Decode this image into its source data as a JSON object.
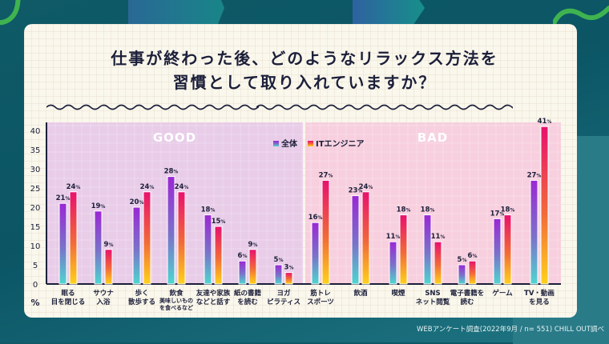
{
  "title": {
    "line1": "仕事が終わった後、どのようなリラックス方法を",
    "line2": "習慣として取り入れていますか？"
  },
  "footnote": "WEBアンケート調査(2022年9月 / n= 551) CHILL OUT調べ",
  "colors": {
    "background": "#0b5565",
    "card": "#faf7ec",
    "good_region": "#e8cce8",
    "bad_region": "#f7cfde",
    "series_all_top": "#9b27d4",
    "series_all_bottom": "#4fd6d0",
    "series_it_top": "#e8106e",
    "series_it_bottom": "#ffd21a",
    "accent_green": "#3fb34f"
  },
  "chart_data": {
    "type": "bar",
    "title": "仕事が終わった後、どのようなリラックス方法を習慣として取り入れていますか？",
    "xlabel": "",
    "ylabel": "%",
    "ylim": [
      0,
      40
    ],
    "yticks": [
      0,
      5,
      10,
      15,
      20,
      25,
      30,
      35,
      40
    ],
    "grid": true,
    "legend": "top-center",
    "regions": [
      {
        "label": "GOOD",
        "from": 0,
        "to": 6
      },
      {
        "label": "BAD",
        "from": 7,
        "to": 13
      }
    ],
    "categories": [
      [
        "眠る",
        "目を閉じる"
      ],
      [
        "サウナ",
        "入浴"
      ],
      [
        "歩く",
        "散歩する"
      ],
      [
        "飲食",
        "美味しいもの",
        "を食べるなど"
      ],
      [
        "友達や家族",
        "などと話す"
      ],
      [
        "紙の書籍",
        "を読む"
      ],
      [
        "ヨガ",
        "ピラティス"
      ],
      [
        "筋トレ",
        "スポーツ"
      ],
      [
        "飲酒"
      ],
      [
        "喫煙"
      ],
      [
        "SNS",
        "ネット閲覧"
      ],
      [
        "電子書籍を",
        "読む"
      ],
      [
        "ゲーム"
      ],
      [
        "TV・動画",
        "を見る"
      ]
    ],
    "series": [
      {
        "name": "全体",
        "values": [
          21,
          19,
          20,
          28,
          18,
          6,
          5,
          16,
          23,
          11,
          18,
          5,
          17,
          27
        ]
      },
      {
        "name": "ITエンジニア",
        "values": [
          24,
          9,
          24,
          24,
          15,
          9,
          3,
          27,
          24,
          18,
          11,
          6,
          18,
          41
        ]
      }
    ],
    "value_suffix": "%"
  }
}
